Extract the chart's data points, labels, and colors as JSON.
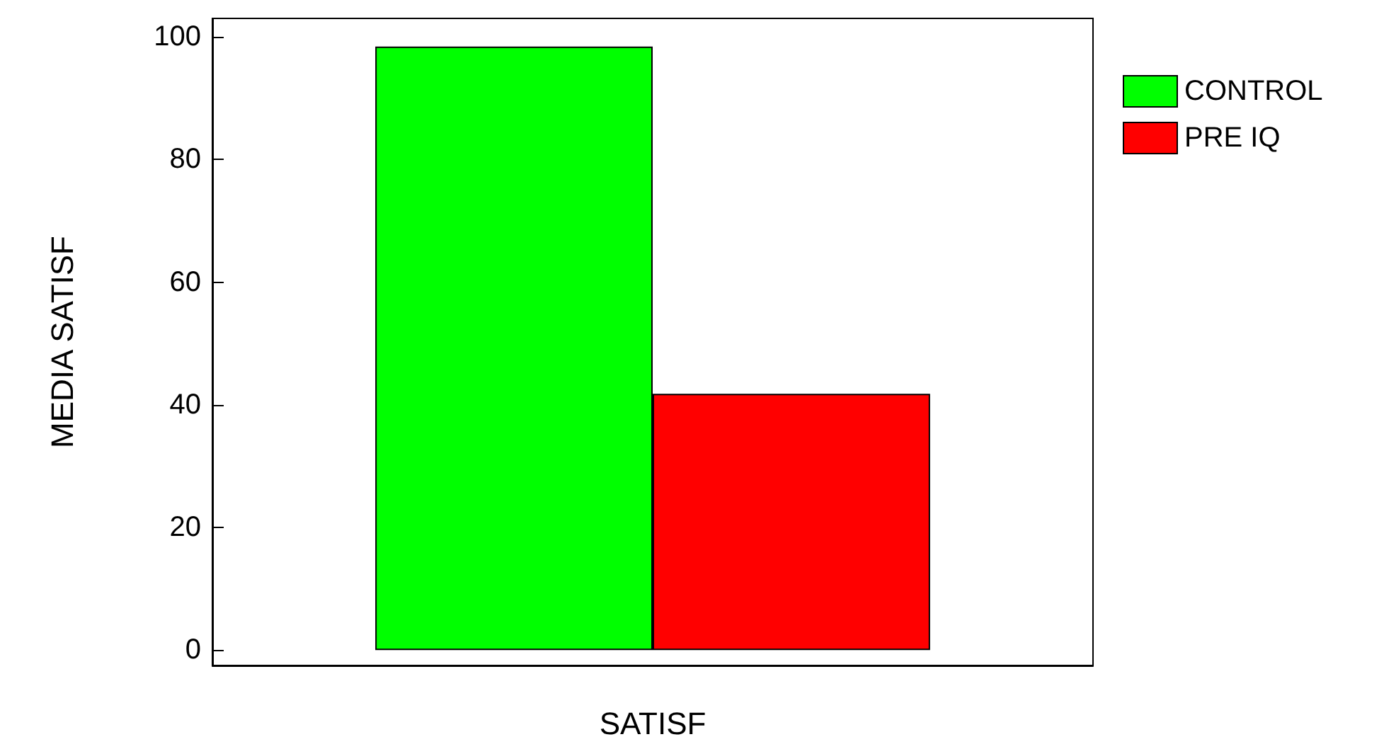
{
  "chart_data": {
    "type": "bar",
    "xlabel": "SATISF",
    "ylabel": "MEDIA SATISF",
    "categories": [
      null
    ],
    "series": [
      {
        "name": "CONTROL",
        "color": "#00ff00",
        "values": [
          98.4
        ]
      },
      {
        "name": "PRE IQ",
        "color": "#ff0000",
        "values": [
          41.8
        ]
      }
    ],
    "ylim": [
      -2.5,
      103
    ],
    "yticks": [
      0,
      20,
      40,
      60,
      80,
      100
    ],
    "grid": false,
    "legend": "top right"
  }
}
